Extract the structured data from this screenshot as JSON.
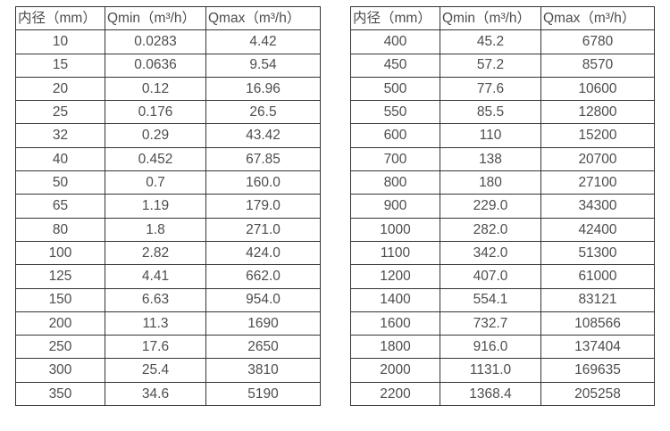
{
  "colors": {
    "text": "#4d4d4d",
    "border": "#333333",
    "background": "#ffffff"
  },
  "tables": [
    {
      "name": "flow-table-small-diameters",
      "headers": [
        "内径（mm）",
        "Qmin（m³/h）",
        "Qmax（m³/h）"
      ],
      "rows": [
        [
          "10",
          "0.0283",
          "4.42"
        ],
        [
          "15",
          "0.0636",
          "9.54"
        ],
        [
          "20",
          "0.12",
          "16.96"
        ],
        [
          "25",
          "0.176",
          "26.5"
        ],
        [
          "32",
          "0.29",
          "43.42"
        ],
        [
          "40",
          "0.452",
          "67.85"
        ],
        [
          "50",
          "0.7",
          "160.0"
        ],
        [
          "65",
          "1.19",
          "179.0"
        ],
        [
          "80",
          "1.8",
          "271.0"
        ],
        [
          "100",
          "2.82",
          "424.0"
        ],
        [
          "125",
          "4.41",
          "662.0"
        ],
        [
          "150",
          "6.63",
          "954.0"
        ],
        [
          "200",
          "11.3",
          "1690"
        ],
        [
          "250",
          "17.6",
          "2650"
        ],
        [
          "300",
          "25.4",
          "3810"
        ],
        [
          "350",
          "34.6",
          "5190"
        ]
      ]
    },
    {
      "name": "flow-table-large-diameters",
      "headers": [
        "内径（mm）",
        "Qmin（m³/h）",
        "Qmax（m³/h）"
      ],
      "rows": [
        [
          "400",
          "45.2",
          "6780"
        ],
        [
          "450",
          "57.2",
          "8570"
        ],
        [
          "500",
          "77.6",
          "10600"
        ],
        [
          "550",
          "85.5",
          "12800"
        ],
        [
          "600",
          "110",
          "15200"
        ],
        [
          "700",
          "138",
          "20700"
        ],
        [
          "800",
          "180",
          "27100"
        ],
        [
          "900",
          "229.0",
          "34300"
        ],
        [
          "1000",
          "282.0",
          "42400"
        ],
        [
          "1100",
          "342.0",
          "51300"
        ],
        [
          "1200",
          "407.0",
          "61000"
        ],
        [
          "1400",
          "554.1",
          "83121"
        ],
        [
          "1600",
          "732.7",
          "108566"
        ],
        [
          "1800",
          "916.0",
          "137404"
        ],
        [
          "2000",
          "1131.0",
          "169635"
        ],
        [
          "2200",
          "1368.4",
          "205258"
        ]
      ]
    }
  ]
}
